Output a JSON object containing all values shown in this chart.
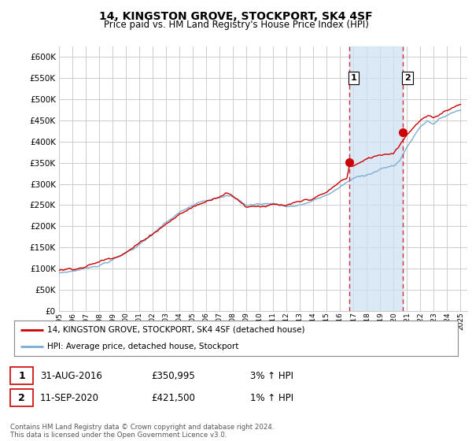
{
  "title": "14, KINGSTON GROVE, STOCKPORT, SK4 4SF",
  "subtitle": "Price paid vs. HM Land Registry's House Price Index (HPI)",
  "ytick_values": [
    0,
    50000,
    100000,
    150000,
    200000,
    250000,
    300000,
    350000,
    400000,
    450000,
    500000,
    550000,
    600000
  ],
  "ylim": [
    0,
    625000
  ],
  "xlim_start": 1995.0,
  "xlim_end": 2025.5,
  "hpi_color": "#7dadd4",
  "price_color": "#cc0000",
  "marker1_date": 2016.67,
  "marker1_value": 350995,
  "marker2_date": 2020.71,
  "marker2_value": 421500,
  "vline1_x": 2016.67,
  "vline2_x": 2020.71,
  "shade_color": "#cce0f5",
  "legend_red_label": "14, KINGSTON GROVE, STOCKPORT, SK4 4SF (detached house)",
  "legend_blue_label": "HPI: Average price, detached house, Stockport",
  "note1_num": "1",
  "note1_date": "31-AUG-2016",
  "note1_price": "£350,995",
  "note1_hpi": "3% ↑ HPI",
  "note2_num": "2",
  "note2_date": "11-SEP-2020",
  "note2_price": "£421,500",
  "note2_hpi": "1% ↑ HPI",
  "footer": "Contains HM Land Registry data © Crown copyright and database right 2024.\nThis data is licensed under the Open Government Licence v3.0.",
  "bg_color": "#ffffff",
  "plot_bg_color": "#ffffff",
  "grid_color": "#cccccc"
}
